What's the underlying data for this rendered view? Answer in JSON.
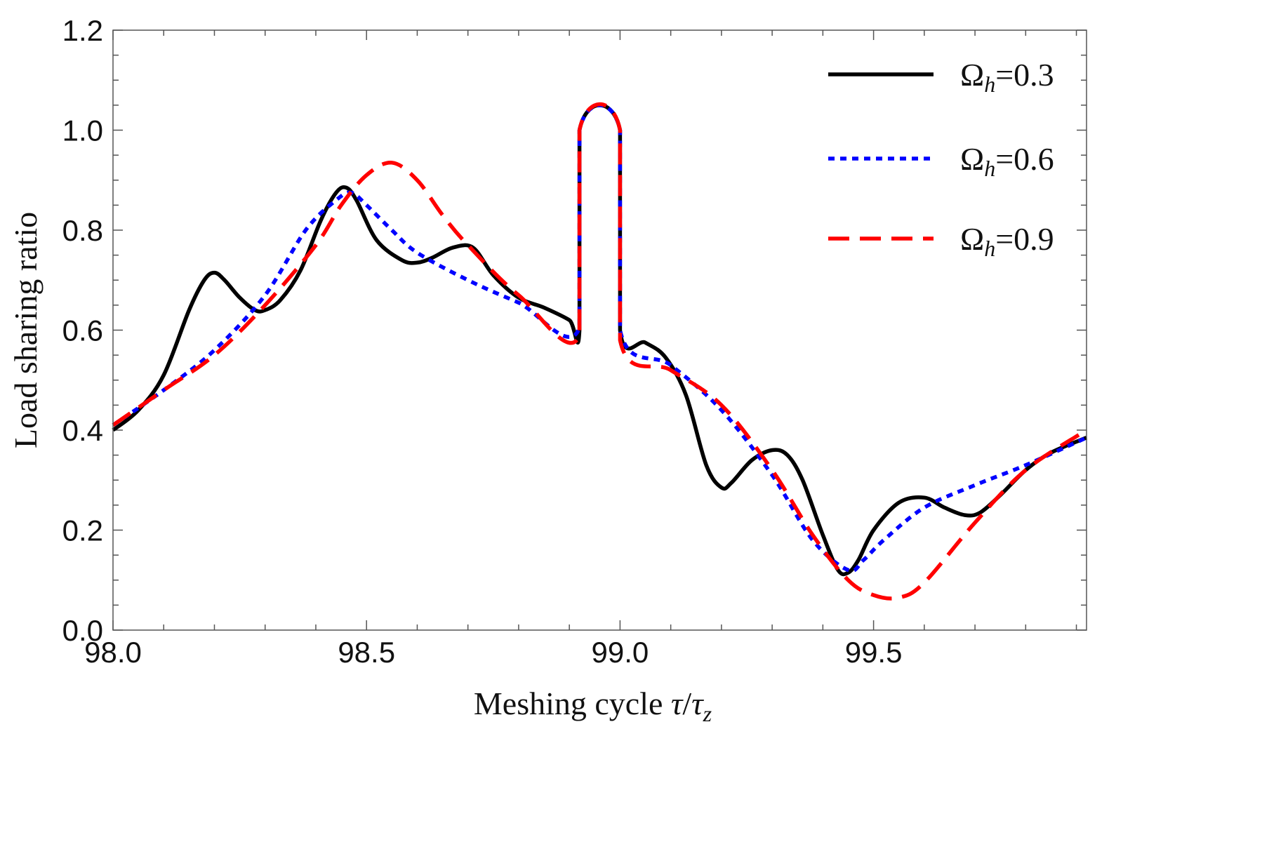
{
  "chart_data": {
    "type": "line",
    "title": "",
    "xlabel": "Meshing cycle τ/τ_z",
    "xlabel_main": "Meshing cycle ",
    "xlabel_tau": "τ",
    "xlabel_slash": "/",
    "xlabel_tau2": "τ",
    "xlabel_sub": "z",
    "ylabel": "Load sharing ratio",
    "xlim": [
      98.0,
      99.92
    ],
    "ylim": [
      0.0,
      1.2
    ],
    "xticks": [
      98.0,
      98.5,
      99.0,
      99.5
    ],
    "xtick_labels": [
      "98.0",
      "98.5",
      "99.0",
      "99.5"
    ],
    "yticks": [
      0.0,
      0.2,
      0.4,
      0.6,
      0.8,
      1.0,
      1.2
    ],
    "ytick_labels": [
      "0.0",
      "0.2",
      "0.4",
      "0.6",
      "0.8",
      "1.0",
      "1.2"
    ],
    "legend_position": "top-right",
    "series": [
      {
        "name": "Ωh=0.3",
        "symbol": "Ω",
        "sub": "h",
        "value_text": "=0.3",
        "color": "#000000",
        "dash": "solid",
        "x": [
          98.0,
          98.05,
          98.1,
          98.15,
          98.18,
          98.2,
          98.22,
          98.25,
          98.28,
          98.3,
          98.33,
          98.37,
          98.41,
          98.44,
          98.46,
          98.48,
          98.52,
          98.57,
          98.6,
          98.63,
          98.67,
          98.71,
          98.75,
          98.8,
          98.85,
          98.9,
          98.92,
          98.92,
          99.0,
          99.0,
          99.05,
          99.09,
          99.13,
          99.17,
          99.2,
          99.22,
          99.26,
          99.3,
          99.33,
          99.36,
          99.4,
          99.43,
          99.45,
          99.47,
          99.5,
          99.55,
          99.6,
          99.64,
          99.68,
          99.71,
          99.75,
          99.8,
          99.85,
          99.92
        ],
        "y": [
          0.4,
          0.44,
          0.51,
          0.64,
          0.7,
          0.715,
          0.7,
          0.665,
          0.64,
          0.64,
          0.66,
          0.72,
          0.82,
          0.875,
          0.885,
          0.86,
          0.78,
          0.74,
          0.735,
          0.745,
          0.765,
          0.765,
          0.71,
          0.665,
          0.645,
          0.62,
          0.6,
          1.0,
          1.0,
          0.6,
          0.575,
          0.545,
          0.47,
          0.33,
          0.285,
          0.295,
          0.34,
          0.36,
          0.35,
          0.3,
          0.19,
          0.12,
          0.115,
          0.14,
          0.2,
          0.255,
          0.265,
          0.245,
          0.23,
          0.235,
          0.27,
          0.32,
          0.355,
          0.385
        ]
      },
      {
        "name": "Ωh=0.6",
        "symbol": "Ω",
        "sub": "h",
        "value_text": "=0.6",
        "color": "#0000ff",
        "dash": "dotted",
        "x": [
          98.0,
          98.1,
          98.2,
          98.3,
          98.38,
          98.44,
          98.47,
          98.5,
          98.55,
          98.6,
          98.7,
          98.8,
          98.92,
          98.92,
          99.0,
          99.0,
          99.1,
          99.2,
          99.3,
          99.38,
          99.45,
          99.48,
          99.52,
          99.6,
          99.7,
          99.8,
          99.92
        ],
        "y": [
          0.41,
          0.48,
          0.56,
          0.67,
          0.8,
          0.86,
          0.875,
          0.85,
          0.8,
          0.755,
          0.7,
          0.655,
          0.605,
          1.0,
          1.0,
          0.6,
          0.53,
          0.44,
          0.31,
          0.18,
          0.12,
          0.14,
          0.18,
          0.245,
          0.29,
          0.33,
          0.385
        ]
      },
      {
        "name": "Ωh=0.9",
        "symbol": "Ω",
        "sub": "h",
        "value_text": "=0.9",
        "color": "#ff0000",
        "dash": "dashed",
        "x": [
          98.0,
          98.1,
          98.2,
          98.3,
          98.4,
          98.45,
          98.5,
          98.55,
          98.6,
          98.65,
          98.7,
          98.8,
          98.92,
          98.92,
          99.0,
          99.0,
          99.1,
          99.2,
          99.3,
          99.38,
          99.45,
          99.5,
          99.55,
          99.6,
          99.7,
          99.8,
          99.92
        ],
        "y": [
          0.41,
          0.48,
          0.55,
          0.65,
          0.77,
          0.85,
          0.91,
          0.935,
          0.9,
          0.83,
          0.77,
          0.67,
          0.59,
          1.0,
          1.0,
          0.58,
          0.52,
          0.45,
          0.32,
          0.19,
          0.1,
          0.07,
          0.065,
          0.095,
          0.215,
          0.32,
          0.4
        ]
      }
    ]
  }
}
